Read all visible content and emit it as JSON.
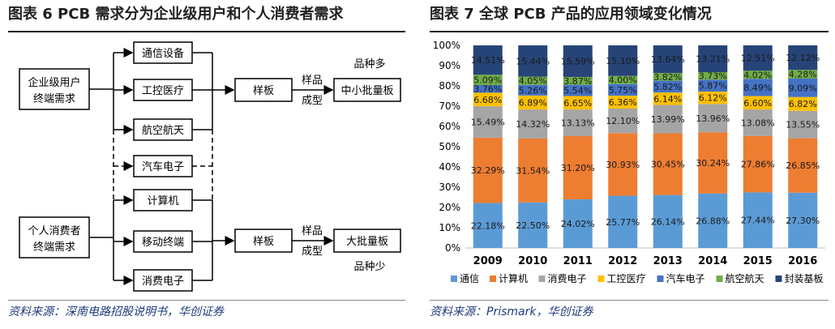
{
  "left": {
    "title": "图表 6   PCB 需求分为企业级用户和个人消费者需求",
    "source": "资料来源：深南电路招股说明书，华创证券",
    "groups": [
      {
        "label_lines": [
          "企业级用户",
          "终端需求"
        ],
        "output": "中小批量板",
        "note": "品种多"
      },
      {
        "label_lines": [
          "个人消费者",
          "终端需求"
        ],
        "output": "大批量板",
        "note": "品种少"
      }
    ],
    "apps_top": [
      "通信设备",
      "工控医疗",
      "航空航天"
    ],
    "app_shared": "汽车电子",
    "apps_bottom": [
      "计算机",
      "移动终端",
      "消费电子"
    ],
    "sample_box": "样板",
    "sample_step": [
      "样品",
      "成型"
    ]
  },
  "right": {
    "title": "图表 7   全球 PCB 产品的应用领域变化情况",
    "source": "资料来源：Prismark，华创证券"
  },
  "chart_data": {
    "type": "bar",
    "stacked": true,
    "percent": true,
    "categories": [
      "2009",
      "2010",
      "2011",
      "2012",
      "2013",
      "2014",
      "2015",
      "2016"
    ],
    "ylim": [
      0,
      100
    ],
    "yticks": [
      "0%",
      "10%",
      "20%",
      "30%",
      "40%",
      "50%",
      "60%",
      "70%",
      "80%",
      "90%",
      "100%"
    ],
    "legend_position": "bottom",
    "series": [
      {
        "name": "通信",
        "color": "#5b9bd5",
        "values": [
          22.18,
          22.5,
          24.02,
          25.77,
          26.14,
          26.88,
          27.44,
          27.3
        ],
        "labels": [
          "22.18%",
          "22.50%",
          "24.02%",
          "25.77%",
          "26.14%",
          "26.88%",
          "27.44%",
          "27.30%"
        ]
      },
      {
        "name": "计算机",
        "color": "#ed7d31",
        "values": [
          32.29,
          31.54,
          31.2,
          30.93,
          30.45,
          30.24,
          27.86,
          26.85
        ],
        "labels": [
          "32.29%",
          "31.54%",
          "31.20%",
          "30.93%",
          "30.45%",
          "30.24%",
          "27.86%",
          "26.85%"
        ]
      },
      {
        "name": "消费电子",
        "color": "#a5a5a5",
        "values": [
          15.49,
          14.32,
          13.13,
          12.1,
          13.99,
          13.96,
          13.08,
          13.55
        ],
        "labels": [
          "15.49%",
          "14.32%",
          "13.13%",
          "12.10%",
          "13.99%",
          "13.96%",
          "13.08%",
          "13.55%"
        ]
      },
      {
        "name": "工控医疗",
        "color": "#ffc000",
        "values": [
          6.68,
          6.89,
          6.65,
          6.36,
          6.14,
          6.12,
          6.6,
          6.82
        ],
        "labels": [
          "6.68%",
          "6.89%",
          "6.65%",
          "6.36%",
          "6.14%",
          "6.12%",
          "6.60%",
          "6.82%"
        ]
      },
      {
        "name": "汽车电子",
        "color": "#4472c4",
        "values": [
          3.76,
          5.26,
          5.54,
          5.75,
          5.82,
          5.87,
          8.49,
          9.09
        ],
        "labels": [
          "3.76%",
          "5.26%",
          "5.54%",
          "5.75%",
          "5.82%",
          "5.87%",
          "8.49%",
          "9.09%"
        ]
      },
      {
        "name": "航空航天",
        "color": "#70ad47",
        "values": [
          5.09,
          4.05,
          3.87,
          4.0,
          3.82,
          3.73,
          4.02,
          4.28
        ],
        "labels": [
          "5.09%",
          "4.05%",
          "3.87%",
          "4.00%",
          "3.82%",
          "3.73%",
          "4.02%",
          "4.28%"
        ]
      },
      {
        "name": "封装基板",
        "color": "#264478",
        "values": [
          14.51,
          15.44,
          15.59,
          15.1,
          13.64,
          13.21,
          12.51,
          12.12
        ],
        "labels": [
          "14.51%",
          "15.44%",
          "15.59%",
          "15.10%",
          "13.64%",
          "13.21%",
          "12.51%",
          "12.12%"
        ]
      }
    ]
  }
}
